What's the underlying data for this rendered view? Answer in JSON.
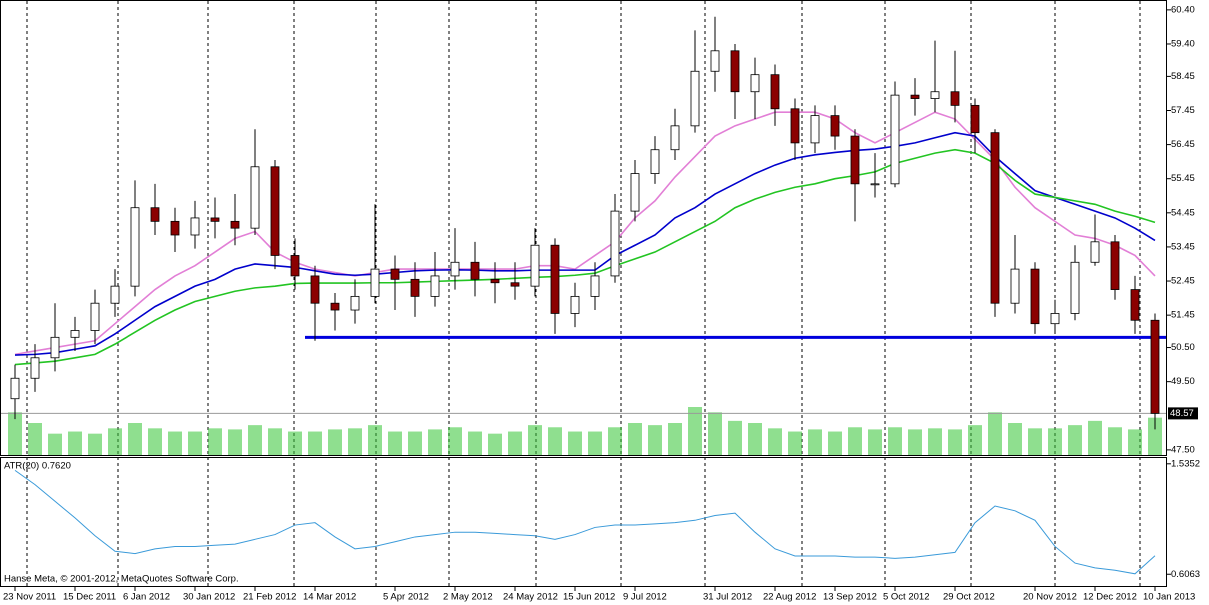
{
  "chart_data": [
    {
      "type": "candlestick",
      "categories": [
        "23 Nov 2011",
        null,
        null,
        "15 Dec 2011",
        null,
        null,
        "6 Jan 2012",
        null,
        null,
        "30 Jan 2012",
        null,
        null,
        "21 Feb 2012",
        null,
        null,
        "14 Mar 2012",
        null,
        null,
        null,
        "5 Apr 2012",
        null,
        null,
        "2 May 2012",
        null,
        null,
        "24 May 2012",
        null,
        null,
        "15 Jun 2012",
        null,
        null,
        "9 Jul 2012",
        null,
        null,
        null,
        "31 Jul 2012",
        null,
        null,
        "22 Aug 2012",
        null,
        null,
        "13 Sep 2012",
        null,
        null,
        "5 Oct 2012",
        null,
        null,
        "29 Oct 2012",
        null,
        null,
        null,
        "20 Nov 2012",
        null,
        null,
        "12 Dec 2012",
        null,
        null,
        "10 Jan 2013"
      ],
      "open": [
        49.0,
        49.6,
        50.2,
        50.8,
        51.0,
        51.8,
        52.3,
        54.6,
        54.2,
        53.8,
        54.3,
        54.2,
        54.0,
        55.8,
        53.2,
        52.6,
        51.8,
        51.6,
        52.0,
        52.8,
        52.5,
        52.0,
        52.6,
        53.0,
        52.5,
        52.4,
        52.3,
        53.5,
        51.5,
        52.0,
        52.6,
        54.5,
        55.6,
        56.3,
        57.0,
        58.6,
        59.2,
        58.0,
        58.5,
        57.5,
        56.5,
        57.3,
        56.7,
        55.3,
        55.3,
        57.9,
        57.8,
        58.0,
        57.6,
        56.8,
        51.8,
        52.8,
        51.2,
        51.5,
        53.0,
        53.6,
        52.2,
        51.3
      ],
      "high": [
        50.0,
        50.6,
        51.8,
        51.4,
        52.2,
        52.8,
        55.4,
        55.3,
        54.6,
        54.8,
        54.9,
        55.0,
        56.9,
        56.0,
        53.7,
        52.9,
        52.1,
        52.5,
        54.7,
        53.2,
        53.0,
        53.3,
        54.0,
        53.6,
        53.0,
        53.0,
        54.0,
        53.7,
        52.4,
        53.0,
        55.0,
        56.0,
        56.7,
        57.5,
        59.8,
        60.2,
        59.4,
        59.0,
        58.8,
        57.8,
        57.6,
        57.6,
        56.9,
        56.2,
        58.3,
        58.4,
        59.5,
        59.2,
        57.8,
        56.9,
        53.8,
        53.0,
        51.9,
        53.5,
        54.4,
        53.8,
        52.6,
        51.5
      ],
      "low": [
        48.4,
        49.2,
        49.8,
        50.4,
        50.6,
        51.4,
        52.0,
        53.8,
        53.3,
        53.4,
        53.7,
        53.5,
        53.8,
        52.8,
        52.2,
        50.7,
        51.0,
        51.2,
        51.8,
        51.6,
        51.4,
        51.7,
        52.2,
        52.0,
        51.8,
        51.9,
        52.0,
        50.9,
        51.1,
        51.6,
        52.4,
        54.2,
        55.3,
        56.0,
        56.8,
        58.0,
        57.2,
        57.2,
        57.0,
        56.0,
        56.2,
        56.3,
        54.2,
        54.9,
        55.2,
        57.3,
        57.4,
        57.1,
        56.2,
        51.4,
        51.5,
        50.9,
        50.9,
        51.3,
        52.9,
        51.9,
        50.9,
        48.1
      ],
      "close": [
        49.6,
        50.2,
        50.8,
        51.0,
        51.8,
        52.3,
        54.6,
        54.2,
        53.8,
        54.3,
        54.2,
        54.0,
        55.8,
        53.2,
        52.6,
        51.8,
        51.6,
        52.0,
        52.8,
        52.5,
        52.0,
        52.6,
        53.0,
        52.5,
        52.4,
        52.3,
        53.5,
        51.5,
        52.0,
        52.6,
        54.5,
        55.6,
        56.3,
        57.0,
        58.6,
        59.2,
        58.0,
        58.5,
        57.5,
        56.5,
        57.3,
        56.7,
        55.3,
        55.3,
        57.9,
        57.8,
        58.0,
        57.6,
        56.8,
        51.8,
        52.8,
        51.2,
        51.5,
        53.0,
        53.6,
        52.2,
        51.3,
        48.57
      ],
      "up_color": "#ffffff",
      "down_color": "#8b0000",
      "series": [
        {
          "color": "#e27fd6",
          "values": [
            50.3,
            50.4,
            50.5,
            50.6,
            50.7,
            51.2,
            51.7,
            52.2,
            52.6,
            52.9,
            53.3,
            53.7,
            53.9,
            53.3,
            53.0,
            52.8,
            52.7,
            52.6,
            52.7,
            52.8,
            52.8,
            52.8,
            52.8,
            52.8,
            52.8,
            52.8,
            52.9,
            52.9,
            52.8,
            53.2,
            53.6,
            54.3,
            54.8,
            55.5,
            56.1,
            56.7,
            57.0,
            57.2,
            57.4,
            57.4,
            57.4,
            57.2,
            56.8,
            56.5,
            56.8,
            57.1,
            57.4,
            57.2,
            56.6,
            56.0,
            55.2,
            54.6,
            54.2,
            53.8,
            53.7,
            53.5,
            53.2,
            52.6
          ]
        },
        {
          "color": "#0000cc",
          "values": [
            50.28,
            50.3,
            50.35,
            50.45,
            50.55,
            50.9,
            51.3,
            51.7,
            52.0,
            52.3,
            52.5,
            52.8,
            52.95,
            52.9,
            52.85,
            52.75,
            52.65,
            52.62,
            52.65,
            52.7,
            52.75,
            52.77,
            52.78,
            52.77,
            52.75,
            52.75,
            52.77,
            52.77,
            52.77,
            52.77,
            53.2,
            53.5,
            53.8,
            54.3,
            54.6,
            55.0,
            55.3,
            55.6,
            55.85,
            56.05,
            56.15,
            56.22,
            56.28,
            56.32,
            56.4,
            56.5,
            56.65,
            56.8,
            56.7,
            56.1,
            55.6,
            55.1,
            54.9,
            54.7,
            54.5,
            54.3,
            54.0,
            53.64
          ]
        },
        {
          "color": "#22c422",
          "values": [
            50.0,
            50.05,
            50.1,
            50.2,
            50.3,
            50.6,
            50.95,
            51.3,
            51.6,
            51.85,
            52.0,
            52.15,
            52.25,
            52.3,
            52.38,
            52.39,
            52.39,
            52.39,
            52.4,
            52.4,
            52.42,
            52.44,
            52.46,
            52.48,
            52.5,
            52.53,
            52.56,
            52.58,
            52.62,
            52.68,
            52.9,
            53.1,
            53.3,
            53.6,
            53.9,
            54.2,
            54.6,
            54.85,
            55.05,
            55.2,
            55.3,
            55.45,
            55.54,
            55.65,
            55.9,
            56.05,
            56.2,
            56.3,
            56.2,
            55.9,
            55.4,
            55.0,
            54.9,
            54.8,
            54.7,
            54.5,
            54.35,
            54.17
          ]
        }
      ],
      "volume": {
        "color": "#33c433",
        "values": [
          40,
          30,
          20,
          22,
          20,
          25,
          30,
          25,
          22,
          22,
          25,
          24,
          28,
          25,
          22,
          22,
          24,
          25,
          28,
          22,
          22,
          24,
          26,
          22,
          20,
          22,
          28,
          26,
          22,
          22,
          26,
          30,
          28,
          30,
          45,
          40,
          32,
          30,
          25,
          22,
          24,
          22,
          26,
          24,
          26,
          24,
          25,
          24,
          28,
          40,
          30,
          25,
          25,
          28,
          32,
          26,
          24,
          35
        ]
      },
      "hline": {
        "value": 50.8,
        "color": "#0000dd"
      },
      "last_label": "48.57",
      "ylim": [
        47.35,
        60.66
      ],
      "yticks": [
        {
          "value": 60.4,
          "label": "60.40"
        },
        {
          "value": 59.4,
          "label": "59.40"
        },
        58.45,
        57.45,
        56.45,
        55.45,
        54.45,
        53.45,
        52.45,
        51.45,
        {
          "value": 50.5,
          "label": "50.50"
        },
        {
          "value": 49.5,
          "label": "49.50"
        },
        {
          "value": 47.5,
          "label": "47.50"
        }
      ],
      "grid": false
    },
    {
      "type": "line",
      "title": "ATR(20) 0.7620",
      "annotation": "Hanse Meta, © 2001-2012, MetaQuotes Software Corp.",
      "series": [
        {
          "color": "#3a9ad9",
          "values": [
            1.48,
            1.36,
            1.22,
            1.08,
            0.93,
            0.8,
            0.78,
            0.82,
            0.84,
            0.84,
            0.85,
            0.86,
            0.9,
            0.94,
            1.02,
            1.04,
            0.92,
            0.82,
            0.84,
            0.88,
            0.92,
            0.94,
            0.96,
            0.96,
            0.95,
            0.94,
            0.93,
            0.9,
            0.94,
            1.0,
            1.02,
            1.02,
            1.03,
            1.04,
            1.06,
            1.1,
            1.12,
            0.96,
            0.82,
            0.76,
            0.76,
            0.76,
            0.75,
            0.75,
            0.74,
            0.75,
            0.77,
            0.79,
            1.04,
            1.18,
            1.14,
            1.06,
            0.84,
            0.7,
            0.66,
            0.64,
            0.61,
            0.762
          ]
        }
      ],
      "ylim": [
        0.499,
        1.584
      ],
      "yticks": [
        1.5352,
        0.6063
      ],
      "grid": false
    }
  ]
}
